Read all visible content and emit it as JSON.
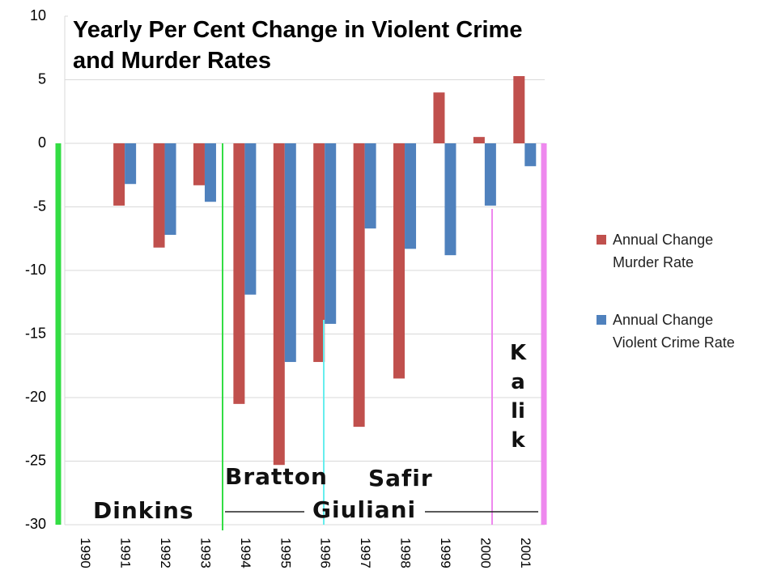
{
  "chart_data": {
    "type": "bar",
    "title": "Yearly Per Cent Change in Violent Crime and Murder Rates",
    "categories": [
      "1990",
      "1991",
      "1992",
      "1993",
      "1994",
      "1995",
      "1996",
      "1997",
      "1998",
      "1999",
      "2000",
      "2001"
    ],
    "series": [
      {
        "name": "Annual Change Murder Rate",
        "color": "#c0504d",
        "values": [
          null,
          -4.9,
          -8.2,
          -3.3,
          -20.5,
          -25.3,
          -17.2,
          -22.3,
          -18.5,
          4.0,
          0.5,
          5.8
        ]
      },
      {
        "name": "Annual Change Violent Crime Rate",
        "color": "#4f81bd",
        "values": [
          null,
          -3.2,
          -7.2,
          -4.6,
          -11.9,
          -17.2,
          -14.2,
          -6.7,
          -8.3,
          -8.8,
          -4.9,
          -1.8
        ]
      }
    ],
    "ylim": [
      -30,
      10
    ],
    "yticks": [
      10,
      5,
      0,
      -5,
      -10,
      -15,
      -20,
      -25,
      -30
    ],
    "grid": true,
    "annotations": [
      "Dinkins",
      "Bratton",
      "Safir",
      "Giuliani",
      "Kalik"
    ]
  }
}
